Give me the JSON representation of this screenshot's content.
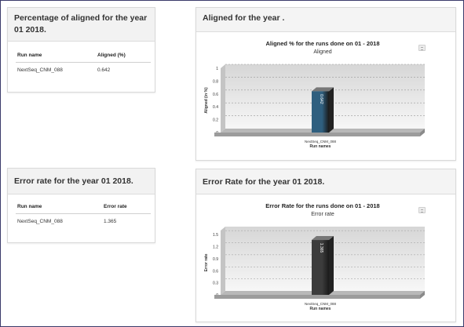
{
  "panels": {
    "aligned_table": {
      "title": "Percentage of aligned for the year 01 2018.",
      "columns": [
        "Run name",
        "Aligned (%)"
      ],
      "rows": [
        [
          "NextSeq_CNM_088",
          "0.642"
        ]
      ]
    },
    "aligned_chart": {
      "title": "Aligned for the year ."
    },
    "error_table": {
      "title": "Error rate for the year 01 2018.",
      "columns": [
        "Run name",
        "Error rate"
      ],
      "rows": [
        [
          "NextSeq_CNM_088",
          "1.365"
        ]
      ]
    },
    "error_chart": {
      "title": "Error Rate for the year 01 2018."
    }
  },
  "chart_data": [
    {
      "type": "bar",
      "title": "Aligned % for the runs done on 01 - 2018",
      "subtitle": "Aligned",
      "xlabel": "Run names",
      "ylabel": "Aligned (in %)",
      "categories": [
        "NextSeq_CNM_088"
      ],
      "values": [
        0.642
      ],
      "value_labels": [
        "0.642"
      ],
      "ylim": [
        0,
        1
      ],
      "yticks": [
        0,
        0.2,
        0.4,
        0.6,
        0.8,
        1
      ],
      "ytick_labels": [
        "0",
        "0.2",
        "0.4",
        "0.6",
        "0.8",
        "1"
      ],
      "grid": true,
      "bar_color": "#2f5f7f"
    },
    {
      "type": "bar",
      "title": "Error Rate for the runs done on 01 - 2018",
      "subtitle": "Error rate",
      "xlabel": "Run names",
      "ylabel": "Error rate",
      "categories": [
        "NextSeq_CNM_088"
      ],
      "values": [
        1.365
      ],
      "value_labels": [
        "1.365"
      ],
      "ylim": [
        0,
        1.6
      ],
      "yticks": [
        0,
        0.3,
        0.6,
        0.9,
        1.2,
        1.5
      ],
      "ytick_labels": [
        "0",
        "0.3",
        "0.6",
        "0.9",
        "1.2",
        "1.5"
      ],
      "grid": true,
      "bar_color": "#3c3c3c"
    }
  ]
}
